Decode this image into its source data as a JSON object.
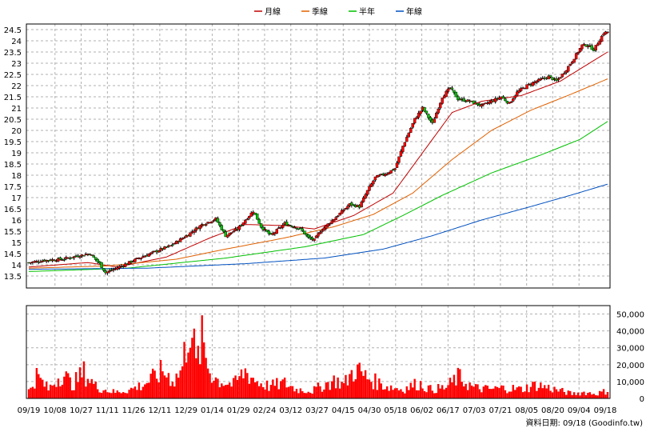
{
  "chart_data": {
    "type": "candlestick",
    "legend": {
      "placement": "top-center",
      "items": [
        {
          "name": "月線",
          "color": "#c00000"
        },
        {
          "name": "季線",
          "color": "#e06000"
        },
        {
          "name": "半年",
          "color": "#00c000"
        },
        {
          "name": "年線",
          "color": "#0050c0"
        }
      ]
    },
    "price_axis": {
      "range": [
        13.5,
        24.5
      ],
      "ticks": [
        "13.5",
        "14",
        "14.5",
        "15",
        "15.5",
        "16",
        "16.5",
        "17",
        "17.5",
        "18",
        "18.5",
        "19",
        "19.5",
        "20",
        "20.5",
        "21",
        "21.5",
        "22",
        "22.5",
        "23",
        "23.5",
        "24",
        "24.5"
      ]
    },
    "volume_axis": {
      "range": [
        0,
        55000
      ],
      "ticks": [
        "0",
        "10,000",
        "20,000",
        "30,000",
        "40,000",
        "50,000"
      ]
    },
    "x_labels": [
      "09/19",
      "10/08",
      "10/27",
      "11/11",
      "11/26",
      "12/11",
      "12/29",
      "01/14",
      "01/29",
      "02/24",
      "03/12",
      "03/27",
      "04/15",
      "04/30",
      "05/18",
      "06/02",
      "06/17",
      "07/03",
      "07/21",
      "08/05",
      "08/20",
      "09/04",
      "09/18"
    ],
    "price_anchors": [
      [
        0,
        14.1
      ],
      [
        8,
        14.2
      ],
      [
        17,
        14.25
      ],
      [
        25,
        14.4
      ],
      [
        31,
        14.5
      ],
      [
        36,
        14.05
      ],
      [
        39,
        13.65
      ],
      [
        42,
        13.75
      ],
      [
        47,
        13.95
      ],
      [
        56,
        14.3
      ],
      [
        66,
        14.65
      ],
      [
        72,
        14.85
      ],
      [
        80,
        15.3
      ],
      [
        88,
        15.8
      ],
      [
        95,
        16.05
      ],
      [
        100,
        15.3
      ],
      [
        106,
        15.6
      ],
      [
        114,
        16.4
      ],
      [
        118,
        15.7
      ],
      [
        123,
        15.3
      ],
      [
        130,
        15.85
      ],
      [
        138,
        15.6
      ],
      [
        142,
        15.2
      ],
      [
        145,
        15.1
      ],
      [
        148,
        15.5
      ],
      [
        155,
        16.05
      ],
      [
        163,
        16.7
      ],
      [
        168,
        16.6
      ],
      [
        172,
        17.3
      ],
      [
        176,
        17.9
      ],
      [
        182,
        18.1
      ],
      [
        186,
        18.3
      ],
      [
        190,
        19.3
      ],
      [
        196,
        20.5
      ],
      [
        200,
        21.0
      ],
      [
        205,
        20.3
      ],
      [
        210,
        21.5
      ],
      [
        214,
        21.9
      ],
      [
        218,
        21.4
      ],
      [
        224,
        21.3
      ],
      [
        230,
        21.1
      ],
      [
        235,
        21.3
      ],
      [
        240,
        21.5
      ],
      [
        244,
        21.2
      ],
      [
        248,
        21.7
      ],
      [
        253,
        22.0
      ],
      [
        258,
        22.2
      ],
      [
        264,
        22.4
      ],
      [
        268,
        22.2
      ],
      [
        272,
        22.6
      ],
      [
        276,
        23.1
      ],
      [
        281,
        23.8
      ],
      [
        284,
        23.8
      ],
      [
        287,
        23.6
      ],
      [
        292,
        24.35
      ],
      [
        294,
        24.4
      ]
    ],
    "ma_anchors": {
      "月線": [
        [
          0,
          13.9
        ],
        [
          30,
          14.1
        ],
        [
          45,
          13.9
        ],
        [
          70,
          14.35
        ],
        [
          92,
          15.2
        ],
        [
          110,
          15.8
        ],
        [
          130,
          15.75
        ],
        [
          145,
          15.6
        ],
        [
          165,
          16.2
        ],
        [
          185,
          17.2
        ],
        [
          200,
          19.0
        ],
        [
          215,
          20.8
        ],
        [
          230,
          21.3
        ],
        [
          250,
          21.55
        ],
        [
          270,
          22.2
        ],
        [
          294,
          23.5
        ]
      ],
      "季線": [
        [
          0,
          13.85
        ],
        [
          40,
          13.95
        ],
        [
          75,
          14.25
        ],
        [
          100,
          14.7
        ],
        [
          130,
          15.2
        ],
        [
          155,
          15.7
        ],
        [
          175,
          16.25
        ],
        [
          195,
          17.2
        ],
        [
          215,
          18.7
        ],
        [
          235,
          20.0
        ],
        [
          255,
          20.9
        ],
        [
          275,
          21.6
        ],
        [
          294,
          22.3
        ]
      ],
      "半年": [
        [
          0,
          13.7
        ],
        [
          50,
          13.85
        ],
        [
          100,
          14.3
        ],
        [
          140,
          14.8
        ],
        [
          170,
          15.35
        ],
        [
          190,
          16.2
        ],
        [
          210,
          17.1
        ],
        [
          235,
          18.1
        ],
        [
          260,
          18.9
        ],
        [
          280,
          19.6
        ],
        [
          294,
          20.4
        ]
      ],
      "年線": [
        [
          0,
          13.8
        ],
        [
          60,
          13.85
        ],
        [
          110,
          14.05
        ],
        [
          150,
          14.3
        ],
        [
          180,
          14.7
        ],
        [
          205,
          15.3
        ],
        [
          230,
          16.0
        ],
        [
          255,
          16.6
        ],
        [
          275,
          17.1
        ],
        [
          294,
          17.6
        ]
      ]
    },
    "volume_anchors": [
      [
        0,
        5000
      ],
      [
        4,
        15000
      ],
      [
        10,
        6000
      ],
      [
        17,
        17000
      ],
      [
        22,
        9000
      ],
      [
        28,
        17000
      ],
      [
        34,
        8000
      ],
      [
        38,
        6000
      ],
      [
        44,
        4000
      ],
      [
        52,
        6000
      ],
      [
        58,
        9000
      ],
      [
        64,
        14000
      ],
      [
        68,
        18000
      ],
      [
        74,
        12000
      ],
      [
        78,
        20000
      ],
      [
        82,
        54000
      ],
      [
        85,
        22000
      ],
      [
        88,
        37000
      ],
      [
        92,
        18000
      ],
      [
        96,
        12000
      ],
      [
        104,
        9000
      ],
      [
        110,
        18000
      ],
      [
        116,
        11000
      ],
      [
        122,
        8000
      ],
      [
        130,
        10000
      ],
      [
        136,
        6000
      ],
      [
        144,
        5000
      ],
      [
        150,
        9000
      ],
      [
        156,
        12000
      ],
      [
        160,
        9000
      ],
      [
        166,
        20000
      ],
      [
        170,
        15000
      ],
      [
        176,
        11000
      ],
      [
        182,
        8000
      ],
      [
        190,
        6000
      ],
      [
        198,
        10000
      ],
      [
        204,
        6000
      ],
      [
        212,
        7000
      ],
      [
        218,
        14000
      ],
      [
        226,
        7000
      ],
      [
        234,
        6000
      ],
      [
        242,
        7000
      ],
      [
        250,
        6000
      ],
      [
        258,
        9000
      ],
      [
        264,
        7000
      ],
      [
        270,
        5000
      ],
      [
        276,
        3000
      ],
      [
        282,
        4000
      ],
      [
        288,
        3000
      ],
      [
        294,
        5000
      ]
    ],
    "footer": "資料日期: 09/18  (Goodinfo.tw)"
  }
}
